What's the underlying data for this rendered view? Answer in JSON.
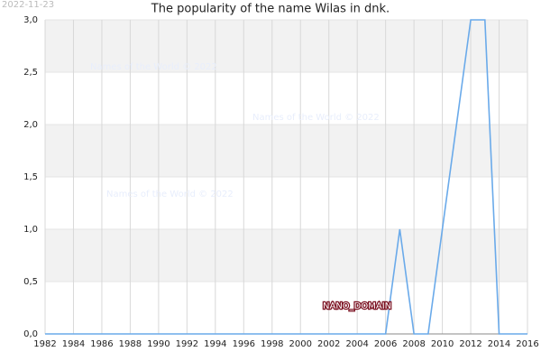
{
  "date_stamp": "2022-11-23",
  "watermarks": [
    "Names of the World © 2022",
    "Names of the World © 2022",
    "Names of the World © 2022"
  ],
  "domain_label": "NANO_DOMAIN",
  "chart_data": {
    "type": "line",
    "title": "The popularity of the name Wilas in dnk.",
    "x": [
      1982,
      1983,
      1984,
      1985,
      1986,
      1987,
      1988,
      1989,
      1990,
      1991,
      1992,
      1993,
      1994,
      1995,
      1996,
      1997,
      1998,
      1999,
      2000,
      2001,
      2002,
      2003,
      2004,
      2005,
      2006,
      2007,
      2008,
      2009,
      2010,
      2011,
      2012,
      2013,
      2014,
      2015,
      2016
    ],
    "series": [
      {
        "name": "Wilas",
        "color": "#6aaaea",
        "values": [
          0,
          0,
          0,
          0,
          0,
          0,
          0,
          0,
          0,
          0,
          0,
          0,
          0,
          0,
          0,
          0,
          0,
          0,
          0,
          0,
          0,
          0,
          0,
          0,
          0,
          1,
          0,
          0,
          1,
          2,
          3,
          3,
          0,
          0,
          0
        ]
      }
    ],
    "xlim": [
      1982,
      2016
    ],
    "xticks": [
      1982,
      1984,
      1986,
      1988,
      1990,
      1992,
      1994,
      1996,
      1998,
      2000,
      2002,
      2004,
      2006,
      2008,
      2010,
      2012,
      2014,
      2016
    ],
    "ylim": [
      0,
      3
    ],
    "yticks": [
      {
        "value": 0,
        "label": "0,0"
      },
      {
        "value": 0.5,
        "label": "0,5"
      },
      {
        "value": 1,
        "label": "1,0"
      },
      {
        "value": 1.5,
        "label": "1,5"
      },
      {
        "value": 2,
        "label": "2,0"
      },
      {
        "value": 2.5,
        "label": "2,5"
      },
      {
        "value": 3,
        "label": "3,0"
      }
    ],
    "grid": true
  }
}
